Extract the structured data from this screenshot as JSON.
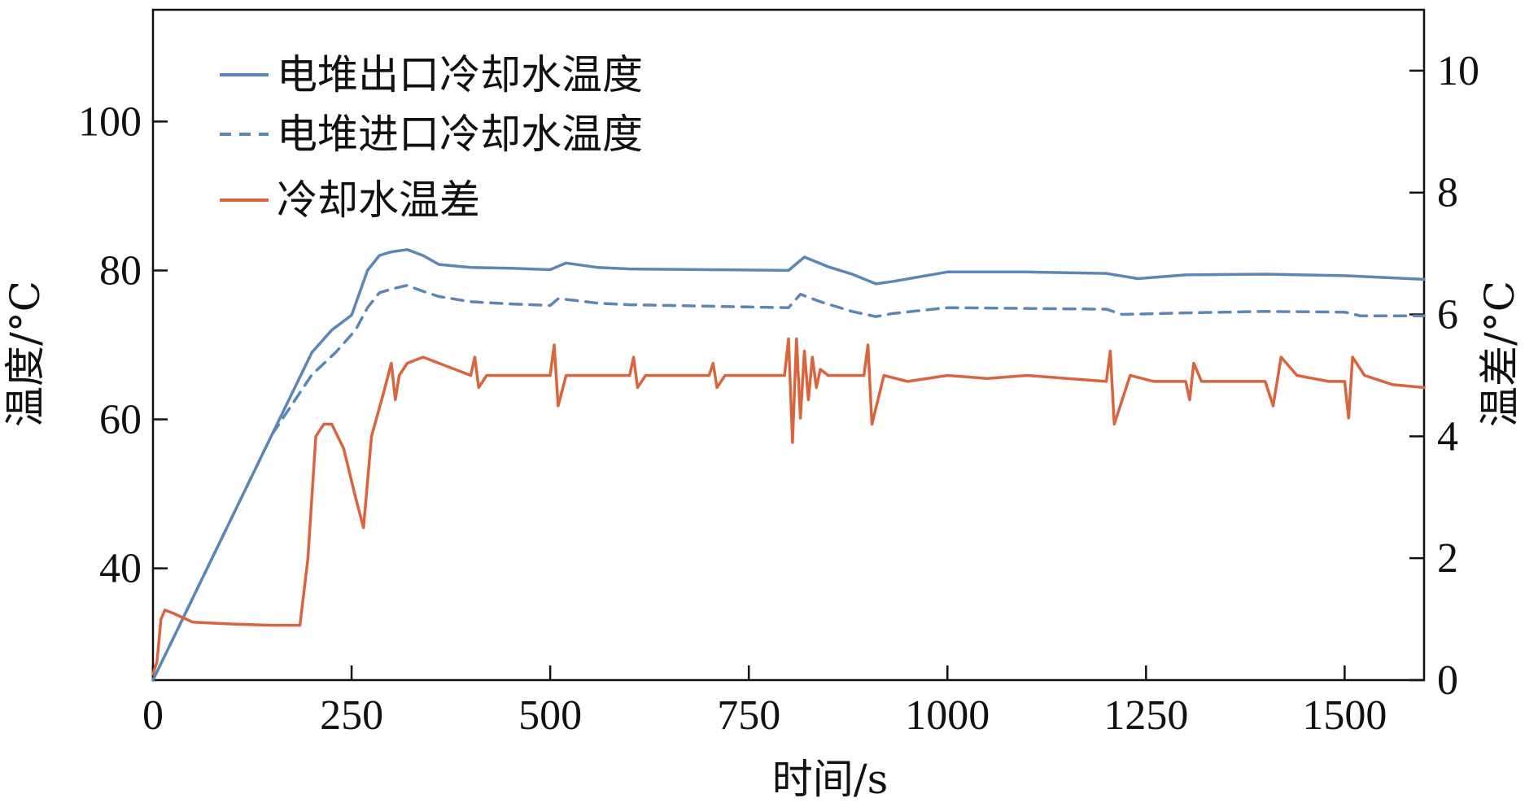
{
  "chart_data": {
    "type": "line",
    "xlabel": "时间/s",
    "ylabel_left": "温度/°C",
    "ylabel_right": "温差/°C",
    "xlim": [
      0,
      1600
    ],
    "ylim_left": [
      25,
      115
    ],
    "ylim_right": [
      0,
      11
    ],
    "xticks": [
      0,
      250,
      500,
      750,
      1000,
      1250,
      1500
    ],
    "yticks_left": [
      40,
      60,
      80,
      100
    ],
    "yticks_right": [
      0,
      2,
      4,
      6,
      8,
      10
    ],
    "grid": false,
    "legend_position": "top-left",
    "series": [
      {
        "name": "电堆出口冷却水温度",
        "axis": "left",
        "color": "#5b86b5",
        "dash": "solid",
        "x": [
          0,
          50,
          100,
          150,
          200,
          225,
          250,
          270,
          285,
          300,
          320,
          340,
          360,
          400,
          450,
          500,
          520,
          560,
          600,
          700,
          800,
          820,
          850,
          880,
          910,
          930,
          1000,
          1100,
          1200,
          1240,
          1300,
          1400,
          1500,
          1600
        ],
        "y": [
          25,
          36,
          47,
          58,
          69,
          72,
          74,
          80,
          82,
          82.5,
          82.8,
          82,
          80.8,
          80.4,
          80.3,
          80.1,
          81,
          80.4,
          80.2,
          80.1,
          80,
          81.8,
          80.5,
          79.5,
          78.2,
          78.5,
          79.8,
          79.8,
          79.6,
          78.9,
          79.4,
          79.5,
          79.3,
          78.8
        ]
      },
      {
        "name": "电堆进口冷却水温度",
        "axis": "left",
        "color": "#5b86b5",
        "dash": "dashed",
        "x": [
          0,
          50,
          100,
          150,
          200,
          230,
          255,
          270,
          285,
          300,
          320,
          340,
          360,
          400,
          450,
          500,
          510,
          530,
          560,
          600,
          700,
          800,
          815,
          840,
          880,
          910,
          930,
          1000,
          1100,
          1200,
          1220,
          1300,
          1400,
          1500,
          1520,
          1600
        ],
        "y": [
          25,
          36,
          47,
          58,
          66,
          69,
          72,
          75,
          77,
          77.5,
          78,
          77.2,
          76.5,
          75.8,
          75.5,
          75.3,
          76.2,
          76,
          75.6,
          75.4,
          75.2,
          75,
          76.8,
          75.8,
          74.5,
          73.8,
          74.2,
          75,
          74.9,
          74.8,
          74.1,
          74.3,
          74.5,
          74.4,
          73.9,
          73.9
        ]
      },
      {
        "name": "冷却水温差",
        "axis": "right",
        "color": "#d9643d",
        "dash": "solid",
        "x": [
          0,
          5,
          10,
          15,
          25,
          50,
          100,
          150,
          185,
          195,
          205,
          215,
          225,
          240,
          255,
          265,
          275,
          290,
          300,
          305,
          310,
          320,
          340,
          360,
          380,
          400,
          405,
          410,
          420,
          450,
          500,
          505,
          510,
          520,
          550,
          600,
          605,
          610,
          620,
          700,
          705,
          710,
          720,
          795,
          800,
          805,
          810,
          815,
          820,
          825,
          830,
          835,
          840,
          850,
          895,
          900,
          905,
          920,
          950,
          1000,
          1050,
          1100,
          1200,
          1205,
          1210,
          1230,
          1260,
          1300,
          1305,
          1310,
          1320,
          1400,
          1410,
          1420,
          1440,
          1480,
          1500,
          1505,
          1510,
          1525,
          1560,
          1600
        ],
        "y": [
          0.1,
          0.3,
          1,
          1.15,
          1.1,
          0.95,
          0.92,
          0.9,
          0.9,
          2,
          4,
          4.2,
          4.2,
          3.8,
          3,
          2.5,
          4,
          4.7,
          5.2,
          4.6,
          5,
          5.2,
          5.3,
          5.2,
          5.1,
          5.0,
          5.3,
          4.8,
          5.0,
          5.0,
          5.0,
          5.5,
          4.5,
          5.0,
          5.0,
          5.0,
          5.3,
          4.8,
          5.0,
          5.0,
          5.2,
          4.8,
          5.0,
          5.0,
          5.6,
          3.9,
          5.6,
          4.3,
          5.4,
          4.6,
          5.3,
          4.8,
          5.1,
          5.0,
          5.0,
          5.5,
          4.2,
          5.0,
          4.9,
          5.0,
          4.95,
          5.0,
          4.9,
          5.4,
          4.2,
          5.0,
          4.9,
          4.9,
          4.6,
          5.2,
          4.9,
          4.9,
          4.5,
          5.3,
          5.0,
          4.9,
          4.9,
          4.3,
          5.3,
          5.0,
          4.85,
          4.8
        ]
      }
    ]
  }
}
